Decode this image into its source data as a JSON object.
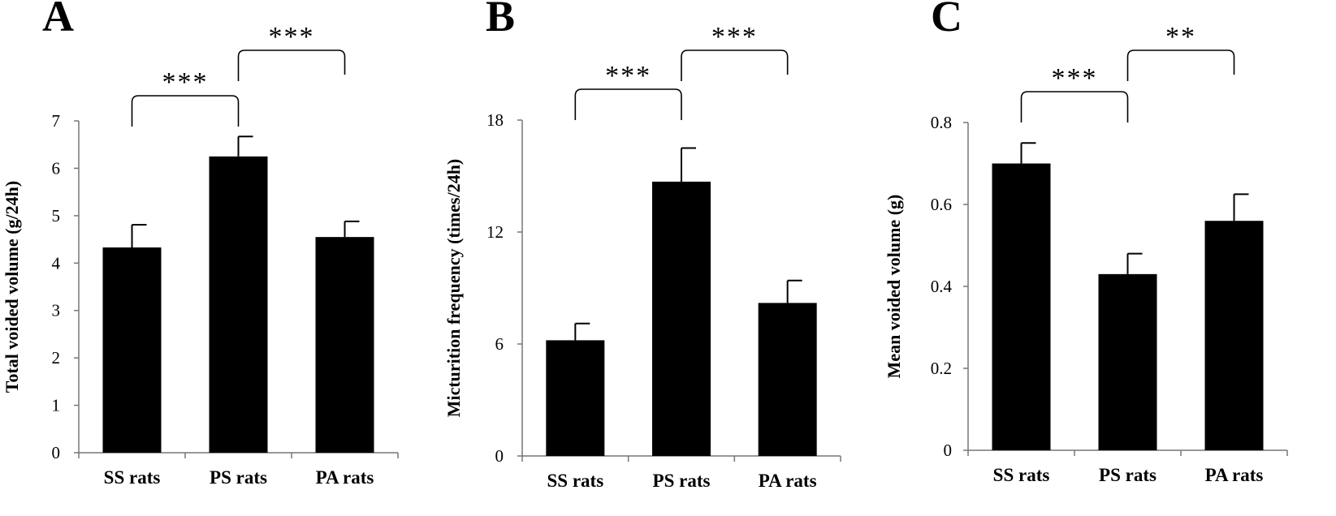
{
  "chart_data": [
    {
      "type": "bar",
      "panel": "A",
      "categories": [
        "SS rats",
        "PS rats",
        "PA rats"
      ],
      "values": [
        4.33,
        6.25,
        4.55
      ],
      "errors": [
        0.48,
        0.42,
        0.33
      ],
      "xlabel": "",
      "ylabel": "Total voided volume (g/24h)",
      "ylim": [
        0,
        7
      ],
      "yticks": [
        "0",
        "1",
        "2",
        "3",
        "4",
        "5",
        "6",
        "7"
      ],
      "grid": false,
      "bar_color": "#000000",
      "significance": [
        {
          "from": "SS rats",
          "to": "PS rats",
          "label": "***"
        },
        {
          "from": "PS rats",
          "to": "PA rats",
          "label": "***"
        }
      ]
    },
    {
      "type": "bar",
      "panel": "B",
      "categories": [
        "SS rats",
        "PS rats",
        "PA rats"
      ],
      "values": [
        6.2,
        14.7,
        8.2
      ],
      "errors": [
        0.9,
        1.8,
        1.2
      ],
      "xlabel": "",
      "ylabel": "Micturition frequency (times/24h)",
      "ylim": [
        0,
        18
      ],
      "yticks": [
        "0",
        "6",
        "12",
        "18"
      ],
      "grid": false,
      "bar_color": "#000000",
      "significance": [
        {
          "from": "SS rats",
          "to": "PS rats",
          "label": "***"
        },
        {
          "from": "PS rats",
          "to": "PA rats",
          "label": "***"
        }
      ]
    },
    {
      "type": "bar",
      "panel": "C",
      "categories": [
        "SS rats",
        "PS rats",
        "PA rats"
      ],
      "values": [
        0.7,
        0.43,
        0.56
      ],
      "errors": [
        0.05,
        0.05,
        0.065
      ],
      "xlabel": "",
      "ylabel": "Mean voided volume (g)",
      "ylim": [
        0,
        0.8
      ],
      "yticks": [
        "0",
        "0.2",
        "0.4",
        "0.6",
        "0.8"
      ],
      "grid": false,
      "bar_color": "#000000",
      "significance": [
        {
          "from": "SS rats",
          "to": "PS rats",
          "label": "***"
        },
        {
          "from": "PS rats",
          "to": "PA rats",
          "label": "**"
        }
      ]
    }
  ]
}
